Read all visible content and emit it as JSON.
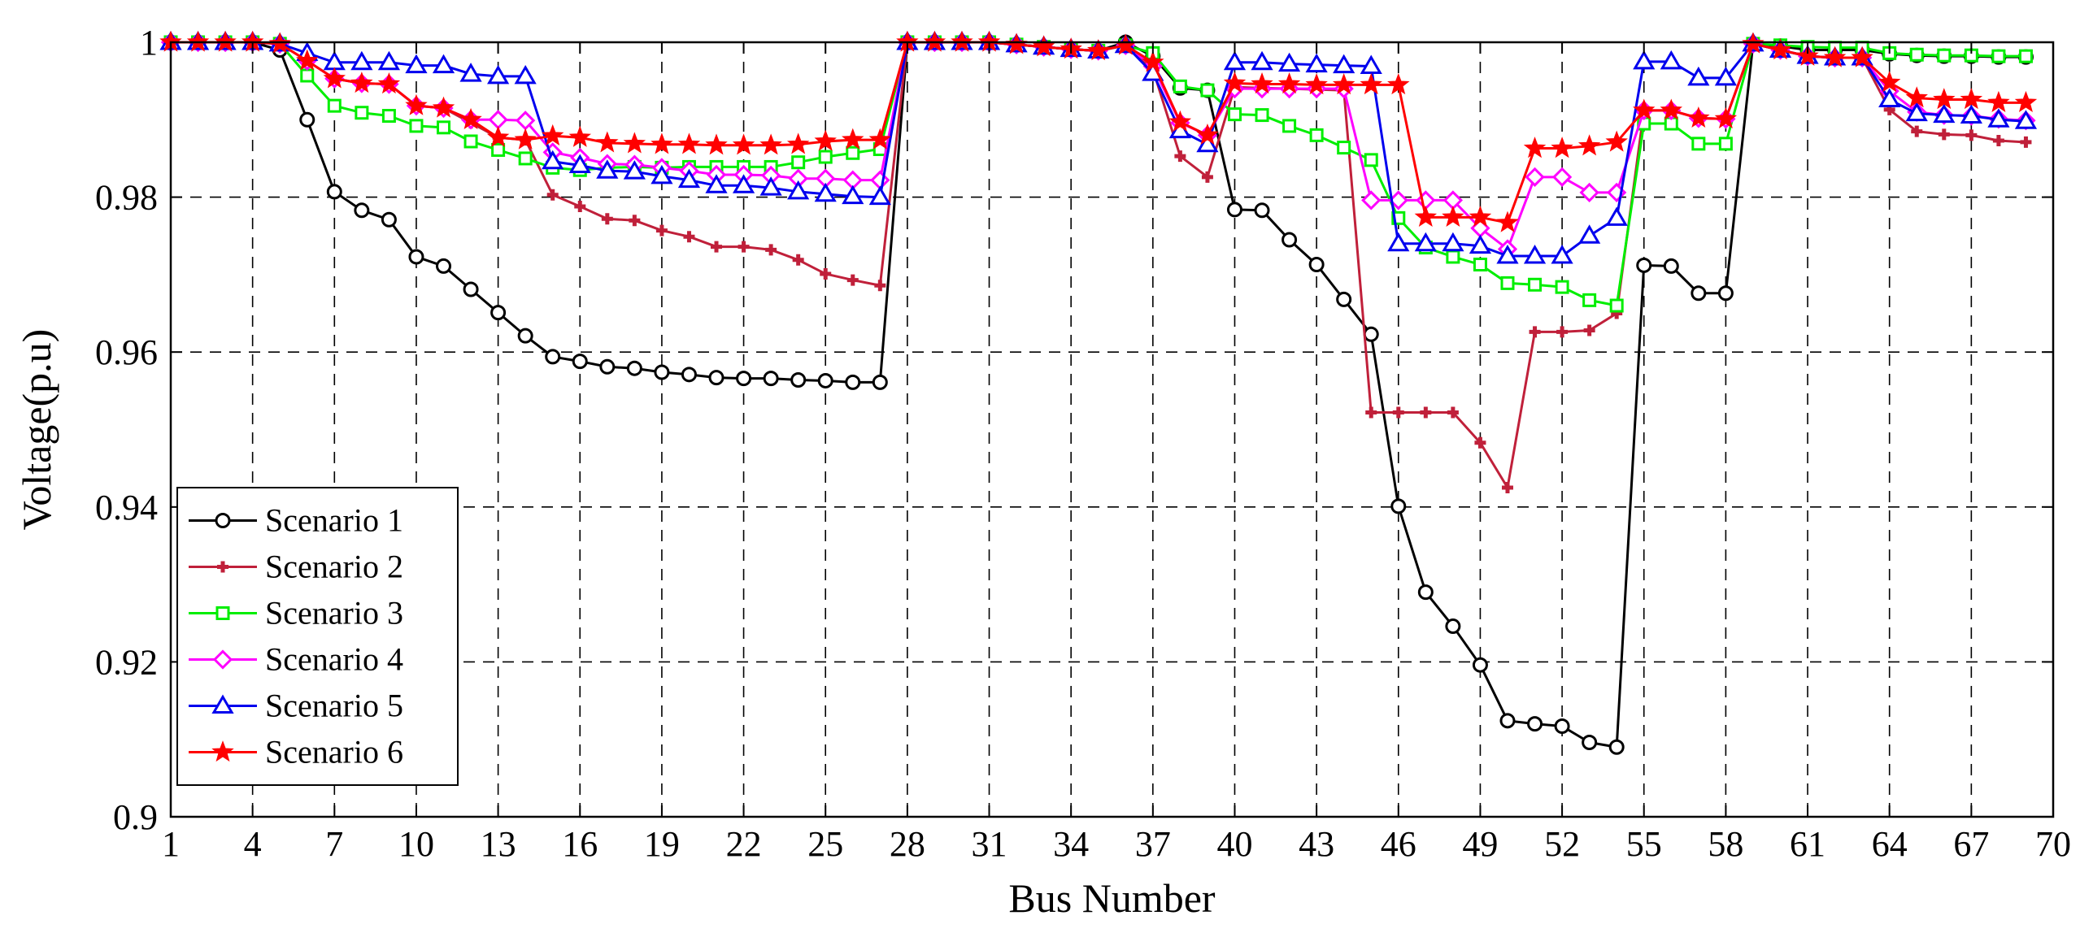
{
  "chart_data": {
    "type": "line",
    "title": "",
    "xlabel": "Bus Number",
    "ylabel": "Voltage(p.u)",
    "xlim": [
      1,
      70
    ],
    "ylim": [
      0.9,
      1.0
    ],
    "xticks": [
      1,
      4,
      7,
      10,
      13,
      16,
      19,
      22,
      25,
      28,
      31,
      34,
      37,
      40,
      43,
      46,
      49,
      52,
      55,
      58,
      61,
      64,
      67,
      70
    ],
    "yticks": [
      0.9,
      0.92,
      0.94,
      0.96,
      0.98,
      1.0
    ],
    "ytick_labels": [
      "0.9",
      "0.92",
      "0.94",
      "0.96",
      "0.98",
      "1"
    ],
    "grid": true,
    "legend_position": "bottom-left",
    "x": [
      1,
      2,
      3,
      4,
      5,
      6,
      7,
      8,
      9,
      10,
      11,
      12,
      13,
      14,
      15,
      16,
      17,
      18,
      19,
      20,
      21,
      22,
      23,
      24,
      25,
      26,
      27,
      28,
      29,
      30,
      31,
      32,
      33,
      34,
      35,
      36,
      37,
      38,
      39,
      40,
      41,
      42,
      43,
      44,
      45,
      46,
      47,
      48,
      49,
      50,
      51,
      52,
      53,
      54,
      55,
      56,
      57,
      58,
      59,
      60,
      61,
      62,
      63,
      64,
      65,
      66,
      67,
      68,
      69
    ],
    "series": [
      {
        "name": "Scenario 1",
        "color": "#000000",
        "marker": "circle",
        "values": [
          1.0,
          1.0,
          1.0,
          1.0,
          0.999,
          0.99,
          0.9807,
          0.9783,
          0.9771,
          0.9723,
          0.9711,
          0.9681,
          0.9651,
          0.9621,
          0.9594,
          0.9588,
          0.9581,
          0.9579,
          0.9574,
          0.9571,
          0.9567,
          0.9566,
          0.9566,
          0.9564,
          0.9563,
          0.9561,
          0.9561,
          1.0,
          1.0,
          1.0,
          1.0,
          0.9997,
          0.9994,
          0.9991,
          0.9989,
          1.0,
          0.9982,
          0.9941,
          0.9938,
          0.9784,
          0.9783,
          0.9745,
          0.9713,
          0.9668,
          0.9623,
          0.9401,
          0.929,
          0.9246,
          0.9196,
          0.9124,
          0.912,
          0.9117,
          0.9096,
          0.909,
          0.9712,
          0.9711,
          0.9676,
          0.9676,
          0.9998,
          0.9995,
          0.999,
          0.999,
          0.999,
          0.9985,
          0.9983,
          0.9982,
          0.9982,
          0.9981,
          0.9981
        ]
      },
      {
        "name": "Scenario 2",
        "color": "#c0203a",
        "marker": "plus",
        "values": [
          1.0,
          1.0,
          1.0,
          1.0,
          0.9998,
          0.9976,
          0.9953,
          0.9947,
          0.9946,
          0.9918,
          0.9915,
          0.9896,
          0.9877,
          0.9874,
          0.9803,
          0.9788,
          0.9772,
          0.977,
          0.9757,
          0.9749,
          0.9736,
          0.9736,
          0.9732,
          0.9719,
          0.9701,
          0.9693,
          0.9686,
          1.0,
          1.0,
          1.0,
          1.0,
          0.9997,
          0.9994,
          0.9991,
          0.9989,
          0.9996,
          0.9965,
          0.9853,
          0.9826,
          0.9942,
          0.9941,
          0.994,
          0.9939,
          0.9938,
          0.9522,
          0.9522,
          0.9522,
          0.9522,
          0.9483,
          0.9425,
          0.9626,
          0.9626,
          0.9628,
          0.965,
          0.9912,
          0.9912,
          0.9902,
          0.9901,
          0.9998,
          0.999,
          0.9982,
          0.998,
          0.998,
          0.9913,
          0.9885,
          0.9881,
          0.988,
          0.9873,
          0.9871
        ]
      },
      {
        "name": "Scenario 3",
        "color": "#00ee00",
        "marker": "square",
        "values": [
          1.0,
          1.0,
          1.0,
          1.0,
          0.9998,
          0.9957,
          0.9918,
          0.9909,
          0.9905,
          0.9892,
          0.989,
          0.9872,
          0.9861,
          0.985,
          0.9838,
          0.9835,
          0.9838,
          0.9839,
          0.9838,
          0.9839,
          0.9839,
          0.9839,
          0.9839,
          0.9845,
          0.9852,
          0.9857,
          0.9862,
          1.0,
          1.0,
          1.0,
          1.0,
          0.9997,
          0.9994,
          0.9991,
          0.9989,
          0.9996,
          0.9986,
          0.9943,
          0.9938,
          0.9907,
          0.9906,
          0.9892,
          0.988,
          0.9864,
          0.9848,
          0.9773,
          0.9735,
          0.9723,
          0.9713,
          0.9689,
          0.9687,
          0.9684,
          0.9667,
          0.966,
          0.9895,
          0.9895,
          0.9869,
          0.9869,
          0.9998,
          0.9996,
          0.9994,
          0.9993,
          0.9993,
          0.9986,
          0.9984,
          0.9983,
          0.9983,
          0.9982,
          0.9982
        ]
      },
      {
        "name": "Scenario 4",
        "color": "#ff00ff",
        "marker": "diamond",
        "values": [
          1.0,
          1.0,
          1.0,
          1.0,
          0.9998,
          0.9976,
          0.9953,
          0.9947,
          0.9946,
          0.9918,
          0.9915,
          0.99,
          0.99,
          0.9899,
          0.9858,
          0.9851,
          0.9843,
          0.9842,
          0.9838,
          0.9834,
          0.9829,
          0.9829,
          0.9828,
          0.9824,
          0.9824,
          0.9822,
          0.9822,
          1.0,
          1.0,
          1.0,
          1.0,
          0.9997,
          0.9994,
          0.9991,
          0.9989,
          0.9996,
          0.9969,
          0.9896,
          0.988,
          0.994,
          0.994,
          0.994,
          0.994,
          0.994,
          0.9796,
          0.9796,
          0.9796,
          0.9796,
          0.976,
          0.9733,
          0.9826,
          0.9826,
          0.9806,
          0.9806,
          0.9912,
          0.9912,
          0.9902,
          0.9901,
          0.9998,
          0.999,
          0.9982,
          0.998,
          0.998,
          0.9937,
          0.991,
          0.9906,
          0.9905,
          0.9901,
          0.9899
        ]
      },
      {
        "name": "Scenario 5",
        "color": "#0000ee",
        "marker": "triangle",
        "values": [
          1.0,
          1.0,
          1.0,
          1.0,
          0.9998,
          0.9986,
          0.9974,
          0.9974,
          0.9974,
          0.997,
          0.997,
          0.9959,
          0.9956,
          0.9956,
          0.9846,
          0.9841,
          0.9834,
          0.9833,
          0.9827,
          0.9822,
          0.9815,
          0.9815,
          0.9812,
          0.9807,
          0.9804,
          0.9801,
          0.98,
          1.0,
          1.0,
          1.0,
          1.0,
          0.9997,
          0.9994,
          0.9991,
          0.9989,
          0.9996,
          0.996,
          0.9886,
          0.9868,
          0.9974,
          0.9974,
          0.9972,
          0.9971,
          0.997,
          0.9969,
          0.974,
          0.974,
          0.974,
          0.9737,
          0.9724,
          0.9724,
          0.9724,
          0.975,
          0.9773,
          0.9975,
          0.9975,
          0.9954,
          0.9954,
          0.9998,
          0.999,
          0.9982,
          0.998,
          0.998,
          0.9926,
          0.9908,
          0.9906,
          0.9905,
          0.99,
          0.9898
        ]
      },
      {
        "name": "Scenario 6",
        "color": "#ff0000",
        "marker": "star",
        "values": [
          1.0,
          1.0,
          1.0,
          1.0,
          0.9998,
          0.9976,
          0.9953,
          0.9947,
          0.9946,
          0.9918,
          0.9915,
          0.99,
          0.9877,
          0.9874,
          0.9879,
          0.9877,
          0.987,
          0.9869,
          0.9868,
          0.9868,
          0.9867,
          0.9867,
          0.9867,
          0.9868,
          0.9872,
          0.9874,
          0.9874,
          1.0,
          1.0,
          1.0,
          1.0,
          0.9997,
          0.9994,
          0.9991,
          0.9989,
          0.9996,
          0.9974,
          0.9897,
          0.988,
          0.9947,
          0.9946,
          0.9946,
          0.9945,
          0.9945,
          0.9945,
          0.9945,
          0.9774,
          0.9774,
          0.9774,
          0.9767,
          0.9863,
          0.9863,
          0.9866,
          0.9871,
          0.9912,
          0.9912,
          0.9902,
          0.9901,
          0.9998,
          0.999,
          0.9982,
          0.998,
          0.998,
          0.9948,
          0.9928,
          0.9926,
          0.9926,
          0.9922,
          0.9922
        ]
      }
    ]
  }
}
